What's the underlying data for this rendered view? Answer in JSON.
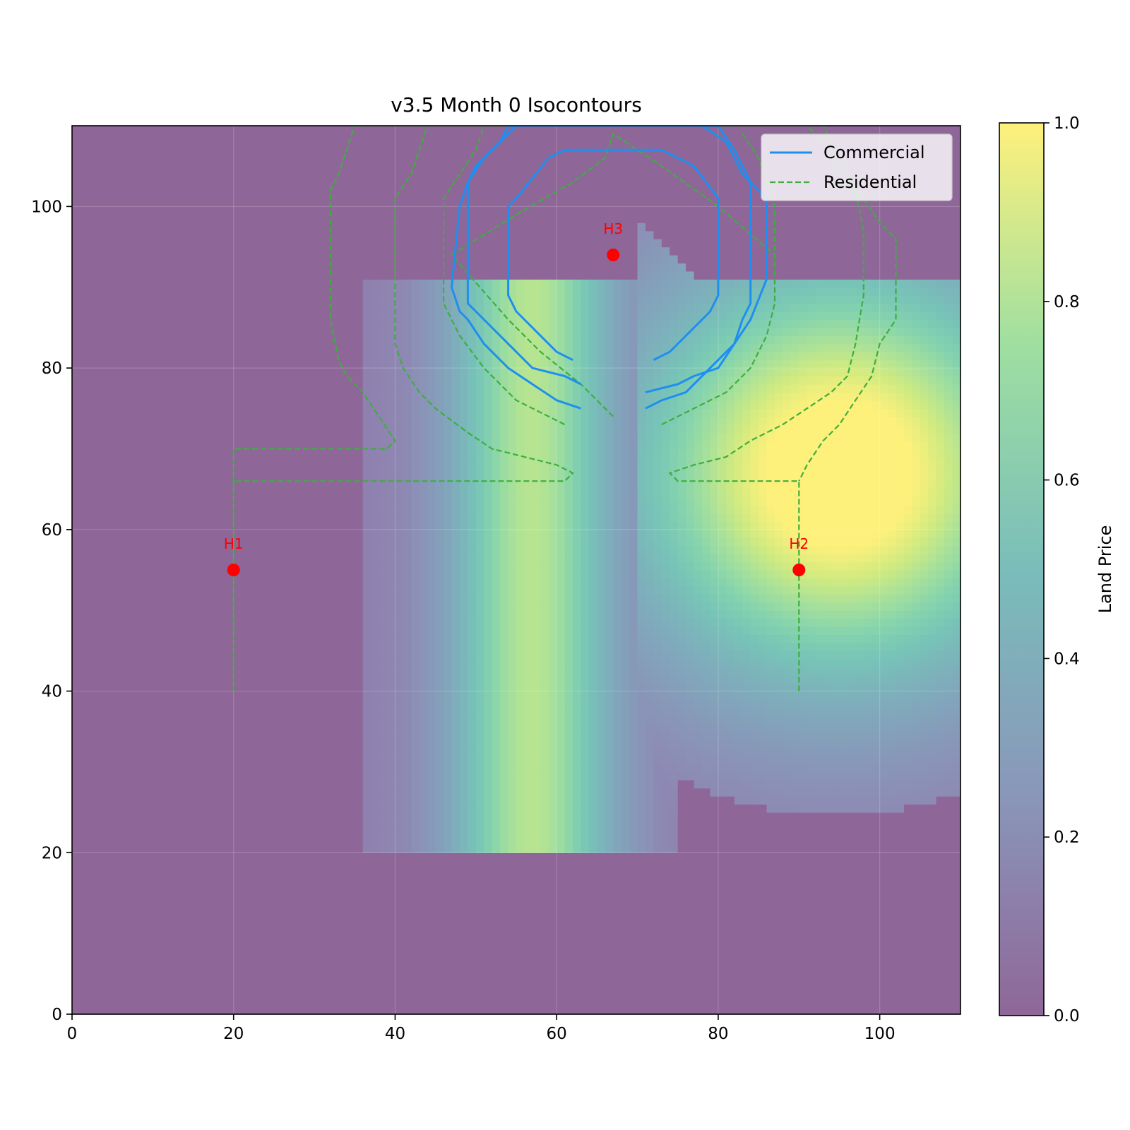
{
  "chart_data": {
    "type": "heatmap",
    "title": "v3.5 Month 0 Isocontours",
    "xlim": [
      0,
      110
    ],
    "ylim": [
      0,
      110
    ],
    "x_ticks": [
      0,
      20,
      40,
      60,
      80,
      100
    ],
    "y_ticks": [
      0,
      20,
      40,
      60,
      80,
      100
    ],
    "grid": true,
    "colorscale": "viridis",
    "colorbar": {
      "label": "Land Price",
      "range": [
        0,
        1
      ],
      "ticks": [
        "0.0",
        "0.2",
        "0.4",
        "0.6",
        "0.8",
        "1.0"
      ]
    },
    "heatmap_regions": {
      "boulevard_zone": {
        "x": [
          36,
          75
        ],
        "y": [
          20,
          91
        ],
        "peak_x": 57,
        "peak_value": 0.7
      },
      "hotspot": {
        "center": [
          95,
          67
        ],
        "peak_value": 1.0
      },
      "baseline_value": 0.0
    },
    "legend": {
      "position": "upper right",
      "entries": [
        {
          "name": "Commercial",
          "color": "#1e8ff0",
          "style": "solid"
        },
        {
          "name": "Residential",
          "color": "#3fae3f",
          "style": "dashed"
        }
      ]
    },
    "houses": [
      {
        "label": "H1",
        "x": 20,
        "y": 55
      },
      {
        "label": "H2",
        "x": 90,
        "y": 55
      },
      {
        "label": "H3",
        "x": 67,
        "y": 94
      }
    ],
    "contours": {
      "commercial": [
        [
          [
            62,
            81
          ],
          [
            60,
            82
          ],
          [
            55,
            87
          ],
          [
            54,
            89
          ],
          [
            54,
            100
          ],
          [
            55,
            101
          ],
          [
            59,
            106
          ],
          [
            61,
            107
          ],
          [
            73,
            107
          ],
          [
            75,
            106
          ],
          [
            77,
            105
          ],
          [
            80,
            101
          ],
          [
            80,
            89
          ],
          [
            79,
            87
          ],
          [
            74,
            82
          ],
          [
            72,
            81
          ]
        ],
        [
          [
            63,
            78
          ],
          [
            61,
            79
          ],
          [
            57,
            80
          ],
          [
            53,
            84
          ],
          [
            51,
            86
          ],
          [
            49,
            88
          ],
          [
            49,
            103
          ],
          [
            50,
            105
          ],
          [
            53,
            108
          ],
          [
            55,
            110
          ],
          [
            78,
            110
          ],
          [
            81,
            108
          ],
          [
            83,
            104
          ],
          [
            84,
            103
          ],
          [
            84,
            88
          ],
          [
            83,
            86
          ],
          [
            82,
            83
          ],
          [
            80,
            80
          ],
          [
            77,
            79
          ],
          [
            75,
            78
          ],
          [
            71,
            77
          ]
        ],
        [
          [
            63,
            75
          ],
          [
            60,
            76
          ],
          [
            57,
            78
          ],
          [
            54,
            80
          ],
          [
            51,
            83
          ],
          [
            49,
            86
          ],
          [
            48,
            87
          ],
          [
            47,
            90
          ],
          [
            48,
            100
          ],
          [
            49,
            103
          ],
          [
            51,
            106
          ],
          [
            53,
            108
          ],
          [
            54,
            110
          ],
          [
            80,
            110
          ],
          [
            82,
            107
          ],
          [
            83,
            105
          ],
          [
            84,
            103
          ],
          [
            86,
            101
          ],
          [
            86,
            91
          ],
          [
            84,
            86
          ],
          [
            82,
            83
          ],
          [
            79,
            80
          ],
          [
            76,
            77
          ],
          [
            73,
            76
          ],
          [
            71,
            75
          ]
        ]
      ],
      "residential": [
        [
          [
            20,
            40
          ],
          [
            20,
            66
          ],
          [
            61,
            66
          ],
          [
            62,
            67
          ],
          [
            60,
            68
          ],
          [
            56,
            69
          ],
          [
            52,
            70
          ],
          [
            49,
            72
          ],
          [
            45,
            75
          ],
          [
            43,
            77
          ],
          [
            41,
            80
          ],
          [
            40,
            83
          ],
          [
            40,
            101
          ],
          [
            42,
            104
          ],
          [
            43,
            107
          ],
          [
            44,
            110
          ]
        ],
        [
          [
            20,
            66
          ],
          [
            20,
            70
          ],
          [
            39,
            70
          ],
          [
            40,
            71
          ],
          [
            38,
            74
          ],
          [
            36,
            77
          ],
          [
            34,
            79
          ],
          [
            33,
            81
          ],
          [
            32,
            86
          ],
          [
            32,
            102
          ],
          [
            33,
            104
          ],
          [
            34,
            107
          ],
          [
            35,
            110
          ],
          [
            91,
            110
          ],
          [
            94,
            107
          ],
          [
            95,
            103
          ],
          [
            98,
            101
          ],
          [
            100,
            98
          ],
          [
            102,
            96
          ],
          [
            102,
            86
          ],
          [
            100,
            83
          ],
          [
            99,
            79
          ],
          [
            97,
            76
          ],
          [
            95,
            73
          ],
          [
            93,
            71
          ],
          [
            91,
            68
          ],
          [
            90,
            66
          ]
        ],
        [
          [
            90,
            40
          ],
          [
            90,
            66
          ],
          [
            75,
            66
          ],
          [
            74,
            67
          ],
          [
            77,
            68
          ],
          [
            81,
            69
          ],
          [
            84,
            71
          ],
          [
            88,
            73
          ],
          [
            91,
            75
          ],
          [
            94,
            77
          ],
          [
            96,
            79
          ],
          [
            97,
            83
          ],
          [
            98,
            89
          ],
          [
            98,
            97
          ],
          [
            97,
            102
          ],
          [
            95,
            106
          ],
          [
            93,
            110
          ]
        ],
        [
          [
            61,
            73
          ],
          [
            55,
            76
          ],
          [
            51,
            80
          ],
          [
            48,
            84
          ],
          [
            46,
            88
          ],
          [
            46,
            101
          ],
          [
            48,
            104
          ],
          [
            50,
            107
          ],
          [
            51,
            110
          ]
        ],
        [
          [
            67,
            74
          ],
          [
            63,
            78
          ],
          [
            58,
            82
          ],
          [
            54,
            86
          ],
          [
            47,
            94
          ],
          [
            55,
            99
          ],
          [
            62,
            103
          ],
          [
            66,
            106
          ],
          [
            67,
            109
          ],
          [
            73,
            105
          ],
          [
            80,
            100
          ],
          [
            87,
            94
          ]
        ],
        [
          [
            73,
            73
          ],
          [
            77,
            75
          ],
          [
            81,
            77
          ],
          [
            84,
            80
          ],
          [
            86,
            84
          ],
          [
            87,
            88
          ],
          [
            87,
            100
          ],
          [
            85,
            106
          ],
          [
            83,
            109
          ]
        ]
      ]
    }
  }
}
